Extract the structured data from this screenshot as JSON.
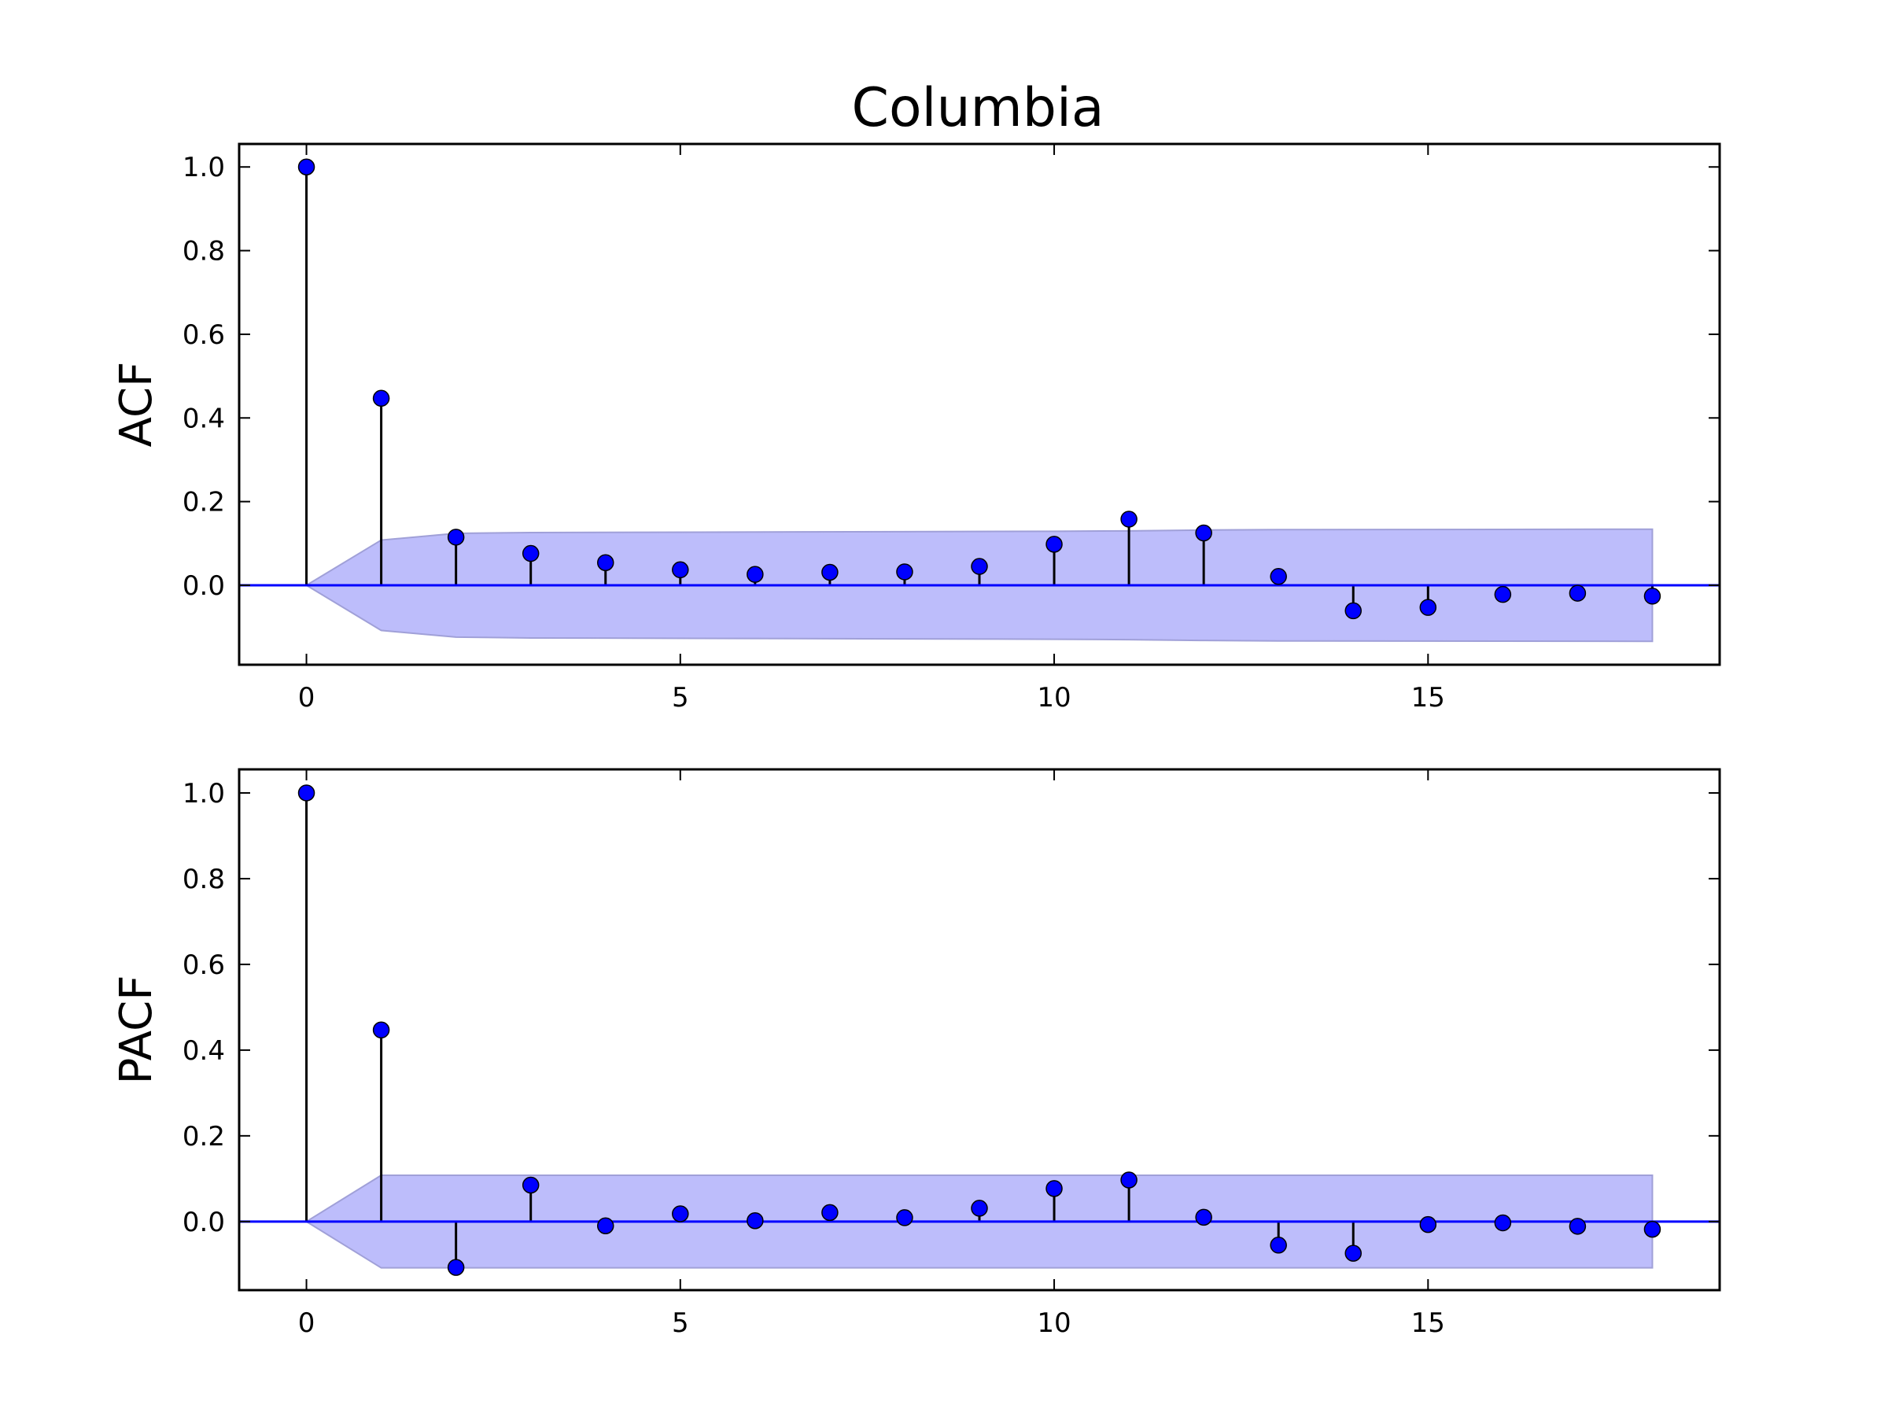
{
  "chart_data": [
    {
      "type": "stem",
      "title": "Columbia",
      "ylabel": "ACF",
      "xlabel": "",
      "xlim": [
        -0.9,
        18.9
      ],
      "ylim": [
        -0.19,
        1.055
      ],
      "x_ticks": [
        "0",
        "5",
        "10",
        "15"
      ],
      "y_ticks": [
        "0.0",
        "0.2",
        "0.4",
        "0.6",
        "0.8",
        "1.0"
      ],
      "grid": false,
      "lags": [
        0,
        1,
        2,
        3,
        4,
        5,
        6,
        7,
        8,
        9,
        10,
        11,
        12,
        13,
        14,
        15,
        16,
        17,
        18
      ],
      "values": [
        1.0,
        0.447,
        0.115,
        0.076,
        0.054,
        0.037,
        0.026,
        0.031,
        0.032,
        0.045,
        0.098,
        0.158,
        0.125,
        0.021,
        -0.061,
        -0.053,
        -0.022,
        -0.019,
        -0.026
      ],
      "confidence_band": {
        "lags": [
          0,
          1,
          2,
          3,
          10,
          11,
          12,
          13,
          18
        ],
        "upper": [
          0,
          0.108,
          0.124,
          0.126,
          0.129,
          0.13,
          0.132,
          0.133,
          0.134
        ],
        "lower": [
          0,
          -0.108,
          -0.124,
          -0.126,
          -0.129,
          -0.13,
          -0.132,
          -0.133,
          -0.134
        ]
      },
      "colors": {
        "markers": "#0000ff",
        "stems": "#000000",
        "baseline": "#0000ff",
        "band": "#8080f0"
      }
    },
    {
      "type": "stem",
      "ylabel": "PACF",
      "xlabel": "",
      "xlim": [
        -0.9,
        18.9
      ],
      "ylim": [
        -0.16,
        1.055
      ],
      "x_ticks": [
        "0",
        "5",
        "10",
        "15"
      ],
      "y_ticks": [
        "0.0",
        "0.2",
        "0.4",
        "0.6",
        "0.8",
        "1.0"
      ],
      "grid": false,
      "lags": [
        0,
        1,
        2,
        3,
        4,
        5,
        6,
        7,
        8,
        9,
        10,
        11,
        12,
        13,
        14,
        15,
        16,
        17,
        18
      ],
      "values": [
        1.0,
        0.447,
        -0.107,
        0.085,
        -0.01,
        0.018,
        0.002,
        0.021,
        0.009,
        0.031,
        0.077,
        0.097,
        0.01,
        -0.055,
        -0.074,
        -0.007,
        -0.003,
        -0.011,
        -0.018
      ],
      "confidence_band": {
        "lags": [
          0,
          1,
          18
        ],
        "upper": [
          0,
          0.108,
          0.108
        ],
        "lower": [
          0,
          -0.108,
          -0.108
        ]
      },
      "colors": {
        "markers": "#0000ff",
        "stems": "#000000",
        "baseline": "#0000ff",
        "band": "#8080f0"
      }
    }
  ]
}
